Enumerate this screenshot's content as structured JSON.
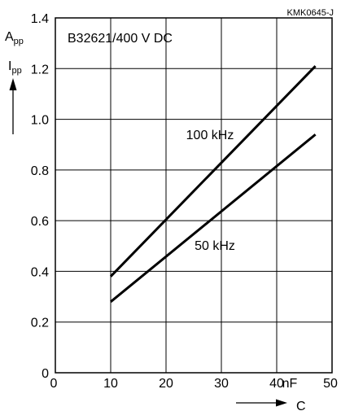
{
  "chart_data": {
    "type": "line",
    "figure_id": "KMK0645-J",
    "part_label": "B32621/400 V DC",
    "y_symbol": "I",
    "y_symbol_sub": "pp",
    "y_unit": "A",
    "y_unit_sub": "pp",
    "x_symbol": "C",
    "x_unit": "nF",
    "xlim": [
      0,
      50
    ],
    "ylim": [
      0,
      1.4
    ],
    "x_ticks": [
      "0",
      "10",
      "20",
      "30",
      "40",
      "50"
    ],
    "y_ticks": [
      "0",
      "0.2",
      "0.4",
      "0.6",
      "0.8",
      "1.0",
      "1.2",
      "1.4"
    ],
    "grid": true,
    "series": [
      {
        "name": "100 kHz",
        "x": [
          10,
          47
        ],
        "y": [
          0.38,
          1.21
        ]
      },
      {
        "name": "50 kHz",
        "x": [
          10,
          47
        ],
        "y": [
          0.28,
          0.94
        ]
      }
    ],
    "colors": {
      "line": "#000000",
      "grid": "#000000",
      "background": "#ffffff"
    }
  }
}
